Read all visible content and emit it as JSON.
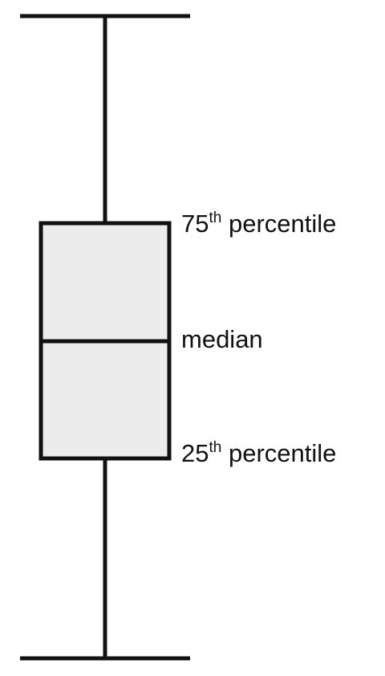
{
  "diagram": {
    "labels": {
      "upper_quartile": {
        "value": "75",
        "suffix": "th",
        "word": "percentile"
      },
      "median": "median",
      "lower_quartile": {
        "value": "25",
        "suffix": "th",
        "word": "percentile"
      }
    },
    "colors": {
      "stroke": "#111111",
      "box_fill": "#ececec"
    }
  }
}
